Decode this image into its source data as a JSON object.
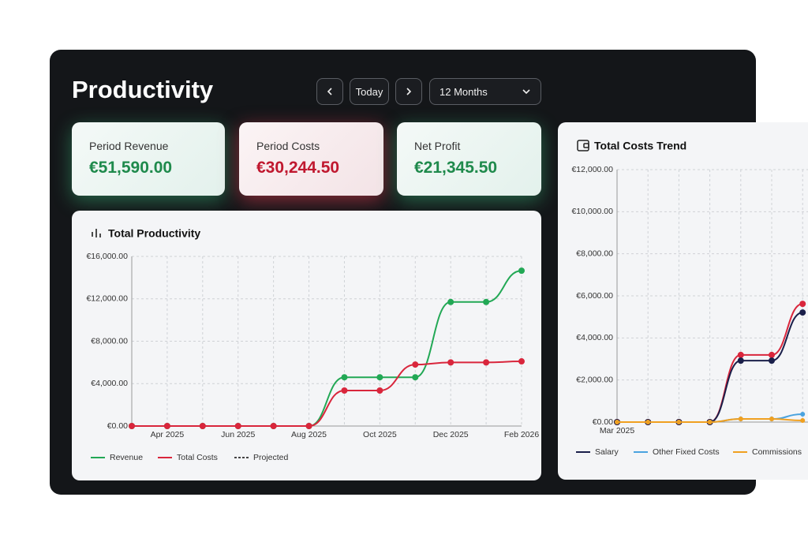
{
  "header": {
    "title": "Productivity",
    "today": "Today",
    "period": "12 Months"
  },
  "kpis": [
    {
      "label": "Period Revenue",
      "value": "€51,590.00",
      "tone": "green"
    },
    {
      "label": "Period Costs",
      "value": "€30,244.50",
      "tone": "red"
    },
    {
      "label": "Net Profit",
      "value": "€21,345.50",
      "tone": "green"
    }
  ],
  "chart_data": [
    {
      "type": "line",
      "title": "Total Productivity",
      "categories": [
        null,
        "Apr 2025",
        null,
        "Jun 2025",
        null,
        "Aug 2025",
        null,
        "Oct 2025",
        null,
        "Dec 2025",
        null,
        "Feb 2026"
      ],
      "series": [
        {
          "name": "Revenue",
          "color": "#22a855",
          "values": [
            0,
            0,
            0,
            0,
            0,
            0,
            4600,
            4600,
            4600,
            11700,
            11700,
            14650
          ]
        },
        {
          "name": "Total Costs",
          "color": "#d9263c",
          "values": [
            0,
            0,
            0,
            0,
            0,
            0,
            3350,
            3350,
            5800,
            6000,
            6000,
            6100
          ]
        },
        {
          "name": "Projected",
          "color": "#444444",
          "dashed": true,
          "values": [
            null,
            null,
            null,
            null,
            null,
            null,
            null,
            null,
            null,
            null,
            null,
            null
          ]
        }
      ],
      "ylim": [
        0,
        16000
      ],
      "yticks": [
        {
          "value": 0,
          "label": "€0.00"
        },
        {
          "value": 4000,
          "label": "€4,000.00"
        },
        {
          "value": 8000,
          "label": "€8,000.00"
        },
        {
          "value": 12000,
          "label": "€12,000.00"
        },
        {
          "value": 16000,
          "label": "€16,000.00"
        }
      ],
      "grid": true
    },
    {
      "type": "line",
      "title": "Total Costs Trend",
      "categories": [
        "Mar 2025",
        null,
        null,
        null,
        null,
        null,
        null
      ],
      "series": [
        {
          "color": "#d9263c",
          "values": [
            0,
            0,
            0,
            0,
            3190,
            3190,
            5620
          ]
        },
        {
          "name": "Salary",
          "color": "#1a1f4a",
          "values": [
            0,
            0,
            0,
            0,
            2920,
            2920,
            5210
          ]
        },
        {
          "name": "Other Fixed Costs",
          "color": "#4aa3df",
          "values": [
            0,
            0,
            0,
            0,
            150,
            150,
            375
          ]
        },
        {
          "name": "Commissions",
          "color": "#f0a020",
          "values": [
            0,
            0,
            0,
            0,
            150,
            150,
            75
          ]
        }
      ],
      "ylim": [
        0,
        12000
      ],
      "yticks": [
        {
          "value": 0,
          "label": "€0.00"
        },
        {
          "value": 2000,
          "label": "€2,000.00"
        },
        {
          "value": 4000,
          "label": "€4,000.00"
        },
        {
          "value": 6000,
          "label": "€6,000.00"
        },
        {
          "value": 8000,
          "label": "€8,000.00"
        },
        {
          "value": 10000,
          "label": "€10,000.00"
        },
        {
          "value": 12000,
          "label": "€12,000.00"
        }
      ],
      "grid": true
    }
  ]
}
